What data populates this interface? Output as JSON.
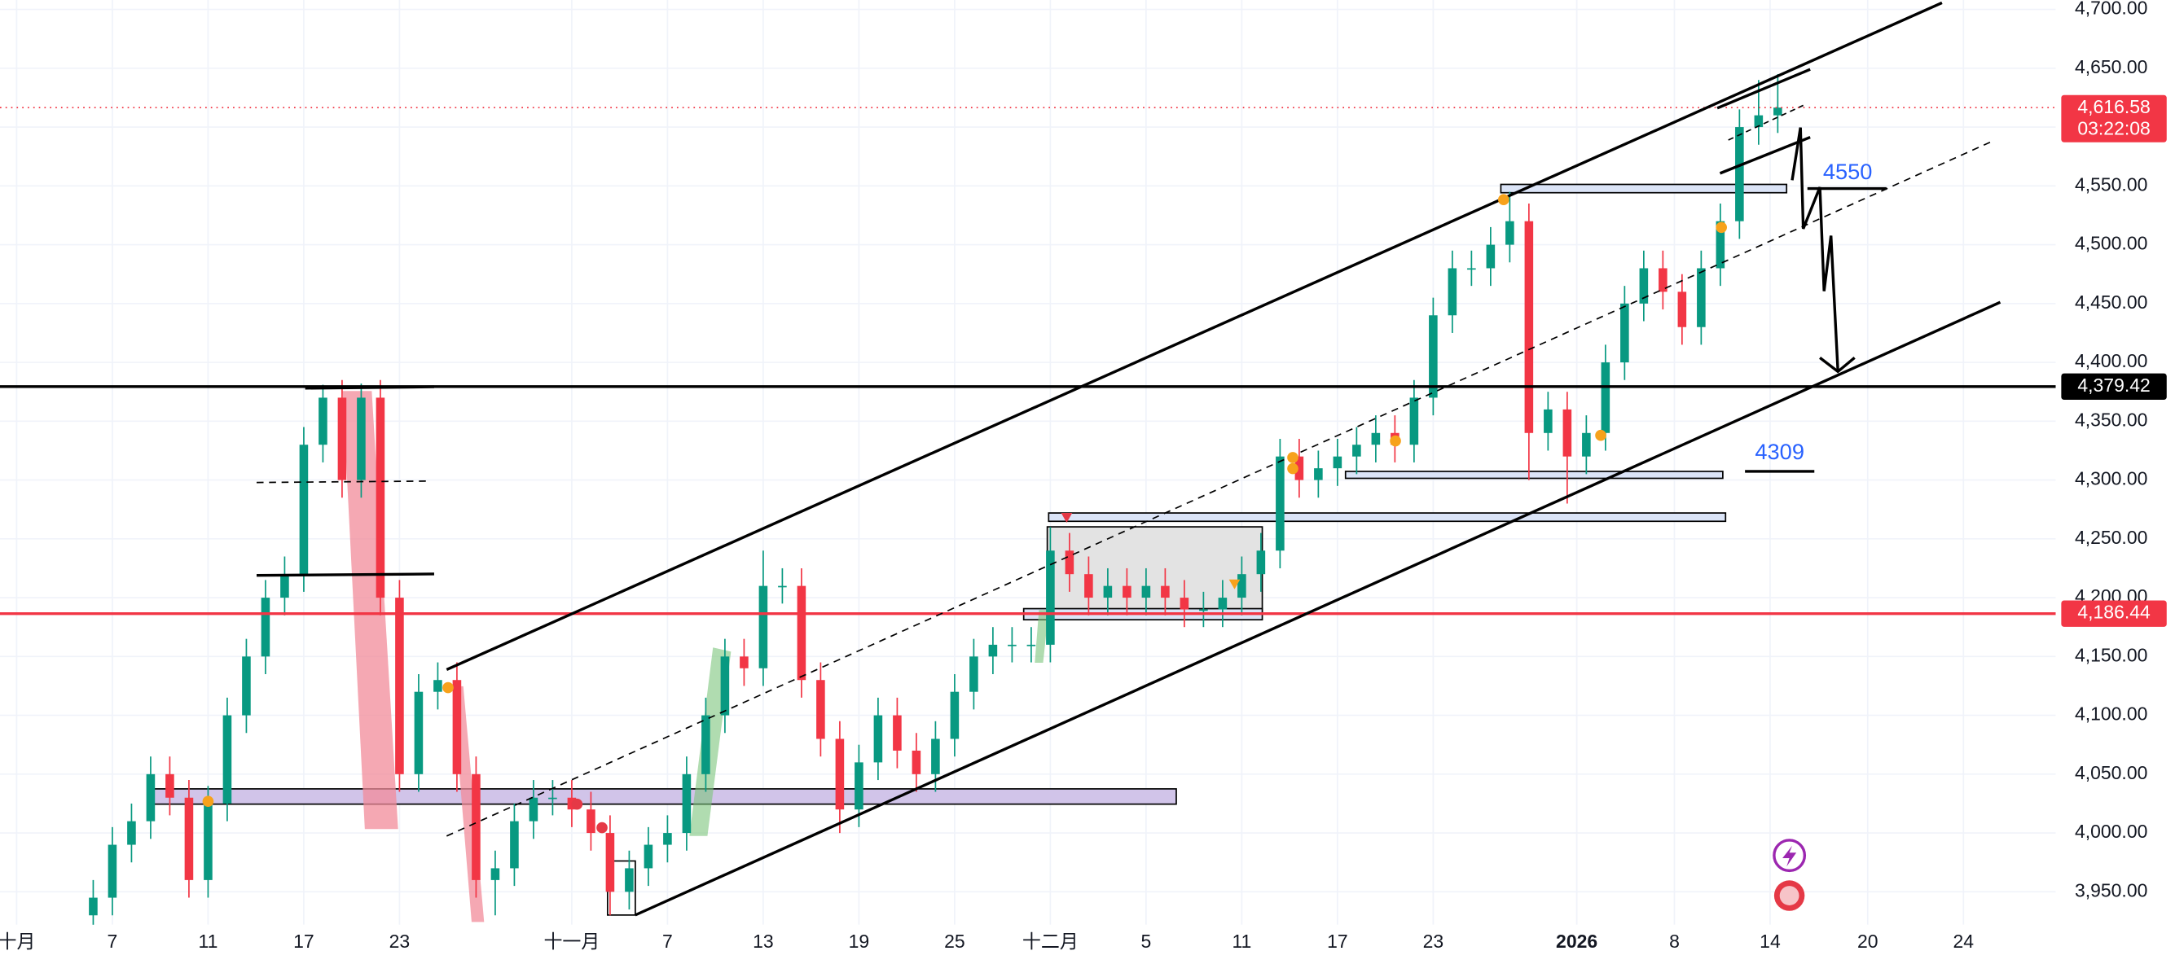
{
  "chart_data": {
    "type": "candlestick",
    "x": [
      4,
      5,
      6,
      7,
      8,
      9,
      10,
      11,
      12,
      13,
      14,
      15,
      16,
      17,
      18,
      19,
      20,
      21,
      22,
      23,
      24,
      25,
      26,
      27,
      28,
      29,
      30,
      31,
      32,
      33,
      34,
      35,
      36,
      37,
      38,
      39,
      40,
      41,
      42,
      43,
      44,
      45,
      46,
      47,
      48,
      49,
      50,
      51,
      52,
      53,
      54,
      55,
      56,
      57,
      58,
      59,
      60,
      61,
      62,
      63,
      64,
      65,
      66,
      67,
      68,
      69,
      70,
      71,
      72,
      73,
      74,
      75,
      76,
      77,
      78,
      79,
      80,
      81,
      82,
      83,
      84,
      85,
      86,
      87,
      88,
      89,
      90,
      91,
      92
    ],
    "open": [
      3930,
      3945,
      3990,
      4010,
      4050,
      4030,
      3960,
      4025,
      4100,
      4150,
      4200,
      4220,
      4330,
      4370,
      4300,
      4370,
      4200,
      4050,
      4120,
      4130,
      4050,
      3960,
      3970,
      4010,
      4030,
      4030,
      4020,
      4000,
      3950,
      3970,
      3990,
      4000,
      4050,
      4100,
      4150,
      4140,
      4210,
      4210,
      4130,
      4080,
      4020,
      4060,
      4100,
      4070,
      4050,
      4080,
      4120,
      4150,
      4160,
      4160,
      4160,
      4240,
      4220,
      4200,
      4210,
      4200,
      4210,
      4200,
      4190,
      4190,
      4200,
      4220,
      4240,
      4320,
      4300,
      4310,
      4320,
      4330,
      4340,
      4330,
      4370,
      4440,
      4480,
      4480,
      4500,
      4520,
      4340,
      4360,
      4320,
      4340,
      4400,
      4450,
      4480,
      4460,
      4430,
      4480,
      4520,
      4600,
      4610
    ],
    "high": [
      3960,
      4005,
      4025,
      4065,
      4065,
      4045,
      4040,
      4115,
      4165,
      4215,
      4235,
      4345,
      4381,
      4385,
      4382,
      4385,
      4215,
      4135,
      4145,
      4145,
      4065,
      3985,
      4025,
      4045,
      4045,
      4045,
      4035,
      4015,
      3985,
      4005,
      4015,
      4065,
      4115,
      4165,
      4165,
      4240,
      4225,
      4225,
      4145,
      4095,
      4075,
      4115,
      4115,
      4085,
      4095,
      4135,
      4165,
      4175,
      4175,
      4175,
      4260,
      4255,
      4235,
      4225,
      4225,
      4225,
      4225,
      4215,
      4205,
      4215,
      4235,
      4255,
      4335,
      4335,
      4325,
      4335,
      4345,
      4355,
      4355,
      4385,
      4455,
      4495,
      4495,
      4515,
      4545,
      4535,
      4375,
      4375,
      4355,
      4415,
      4465,
      4495,
      4495,
      4475,
      4495,
      4535,
      4615,
      4640,
      4645
    ],
    "low": [
      3915,
      3930,
      3975,
      3995,
      4015,
      3945,
      3945,
      4010,
      4085,
      4135,
      4185,
      4205,
      4315,
      4285,
      4285,
      4185,
      4035,
      4035,
      4105,
      4035,
      3945,
      3930,
      3955,
      3995,
      4015,
      4005,
      3985,
      3930,
      3935,
      3955,
      3975,
      3985,
      4035,
      4085,
      4125,
      4125,
      4195,
      4115,
      4065,
      4000,
      4005,
      4045,
      4055,
      4035,
      4035,
      4065,
      4105,
      4135,
      4145,
      4145,
      4145,
      4205,
      4185,
      4185,
      4185,
      4185,
      4185,
      4175,
      4175,
      4175,
      4185,
      4205,
      4225,
      4285,
      4285,
      4295,
      4305,
      4315,
      4315,
      4315,
      4355,
      4425,
      4465,
      4465,
      4485,
      4300,
      4325,
      4280,
      4305,
      4325,
      4385,
      4435,
      4445,
      4415,
      4415,
      4465,
      4505,
      4585,
      4595
    ],
    "close": [
      3945,
      3990,
      4010,
      4050,
      4030,
      3960,
      4025,
      4100,
      4150,
      4200,
      4220,
      4330,
      4370,
      4300,
      4370,
      4200,
      4050,
      4120,
      4130,
      4050,
      3960,
      3970,
      4010,
      4030,
      4030,
      4020,
      4000,
      3950,
      3970,
      3990,
      4000,
      4050,
      4100,
      4150,
      4140,
      4210,
      4210,
      4130,
      4080,
      4020,
      4060,
      4100,
      4070,
      4050,
      4080,
      4120,
      4150,
      4160,
      4160,
      4160,
      4240,
      4220,
      4200,
      4210,
      4200,
      4210,
      4200,
      4190,
      4190,
      4200,
      4220,
      4240,
      4320,
      4300,
      4310,
      4320,
      4330,
      4340,
      4330,
      4370,
      4440,
      4480,
      4480,
      4500,
      4520,
      4340,
      4360,
      4320,
      4340,
      4400,
      4450,
      4480,
      4460,
      4430,
      4480,
      4520,
      4600,
      4610,
      4616.58
    ],
    "up_color": "#089981",
    "down_color": "#f23645",
    "xlim": [
      -0.87,
      106.52
    ],
    "xticks": [
      {
        "value": 0,
        "label": "十月"
      },
      {
        "value": 5,
        "label": "7"
      },
      {
        "value": 10,
        "label": "11"
      },
      {
        "value": 15,
        "label": "17"
      },
      {
        "value": 20,
        "label": "23"
      },
      {
        "value": 29,
        "label": "十一月"
      },
      {
        "value": 34,
        "label": "7"
      },
      {
        "value": 39,
        "label": "13"
      },
      {
        "value": 44,
        "label": "19"
      },
      {
        "value": 49,
        "label": "25"
      },
      {
        "value": 54,
        "label": "十二月"
      },
      {
        "value": 59,
        "label": "5"
      },
      {
        "value": 64,
        "label": "11"
      },
      {
        "value": 69,
        "label": "17"
      },
      {
        "value": 74,
        "label": "23"
      },
      {
        "value": 81.5,
        "label": "2026"
      },
      {
        "value": 86.6,
        "label": "8"
      },
      {
        "value": 91.6,
        "label": "14"
      },
      {
        "value": 96.7,
        "label": "20"
      },
      {
        "value": 101.7,
        "label": "24"
      }
    ],
    "ylim": [
      3922,
      4708
    ],
    "yticks": [
      {
        "value": 3950,
        "label": "3,950.00"
      },
      {
        "value": 4000,
        "label": "4,000.00"
      },
      {
        "value": 4050,
        "label": "4,050.00"
      },
      {
        "value": 4100,
        "label": "4,100.00"
      },
      {
        "value": 4150,
        "label": "4,150.00"
      },
      {
        "value": 4200,
        "label": "4,200.00"
      },
      {
        "value": 4250,
        "label": "4,250.00"
      },
      {
        "value": 4300,
        "label": "4,300.00"
      },
      {
        "value": 4350,
        "label": "4,350.00"
      },
      {
        "value": 4400,
        "label": "4,400.00"
      },
      {
        "value": 4450,
        "label": "4,450.00"
      },
      {
        "value": 4500,
        "label": "4,500.00"
      },
      {
        "value": 4550,
        "label": "4,550.00"
      },
      {
        "value": 4600,
        "label": "4,600.00"
      },
      {
        "value": 4650,
        "label": "4,650.00"
      },
      {
        "value": 4700,
        "label": "4,700.00"
      }
    ],
    "grid": true,
    "price_lines": [
      {
        "value": 4616.58,
        "label": "4,616.58",
        "countdown": "03:22:08",
        "color": "#f23645",
        "style": "dotted"
      },
      {
        "value": 4379.42,
        "label": "4,379.42",
        "color": "#000000",
        "style": "solid"
      },
      {
        "value": 4186.44,
        "label": "4,186.44",
        "color": "#f23645",
        "style": "solid"
      }
    ],
    "annotations": [
      "4550",
      "4309"
    ]
  }
}
